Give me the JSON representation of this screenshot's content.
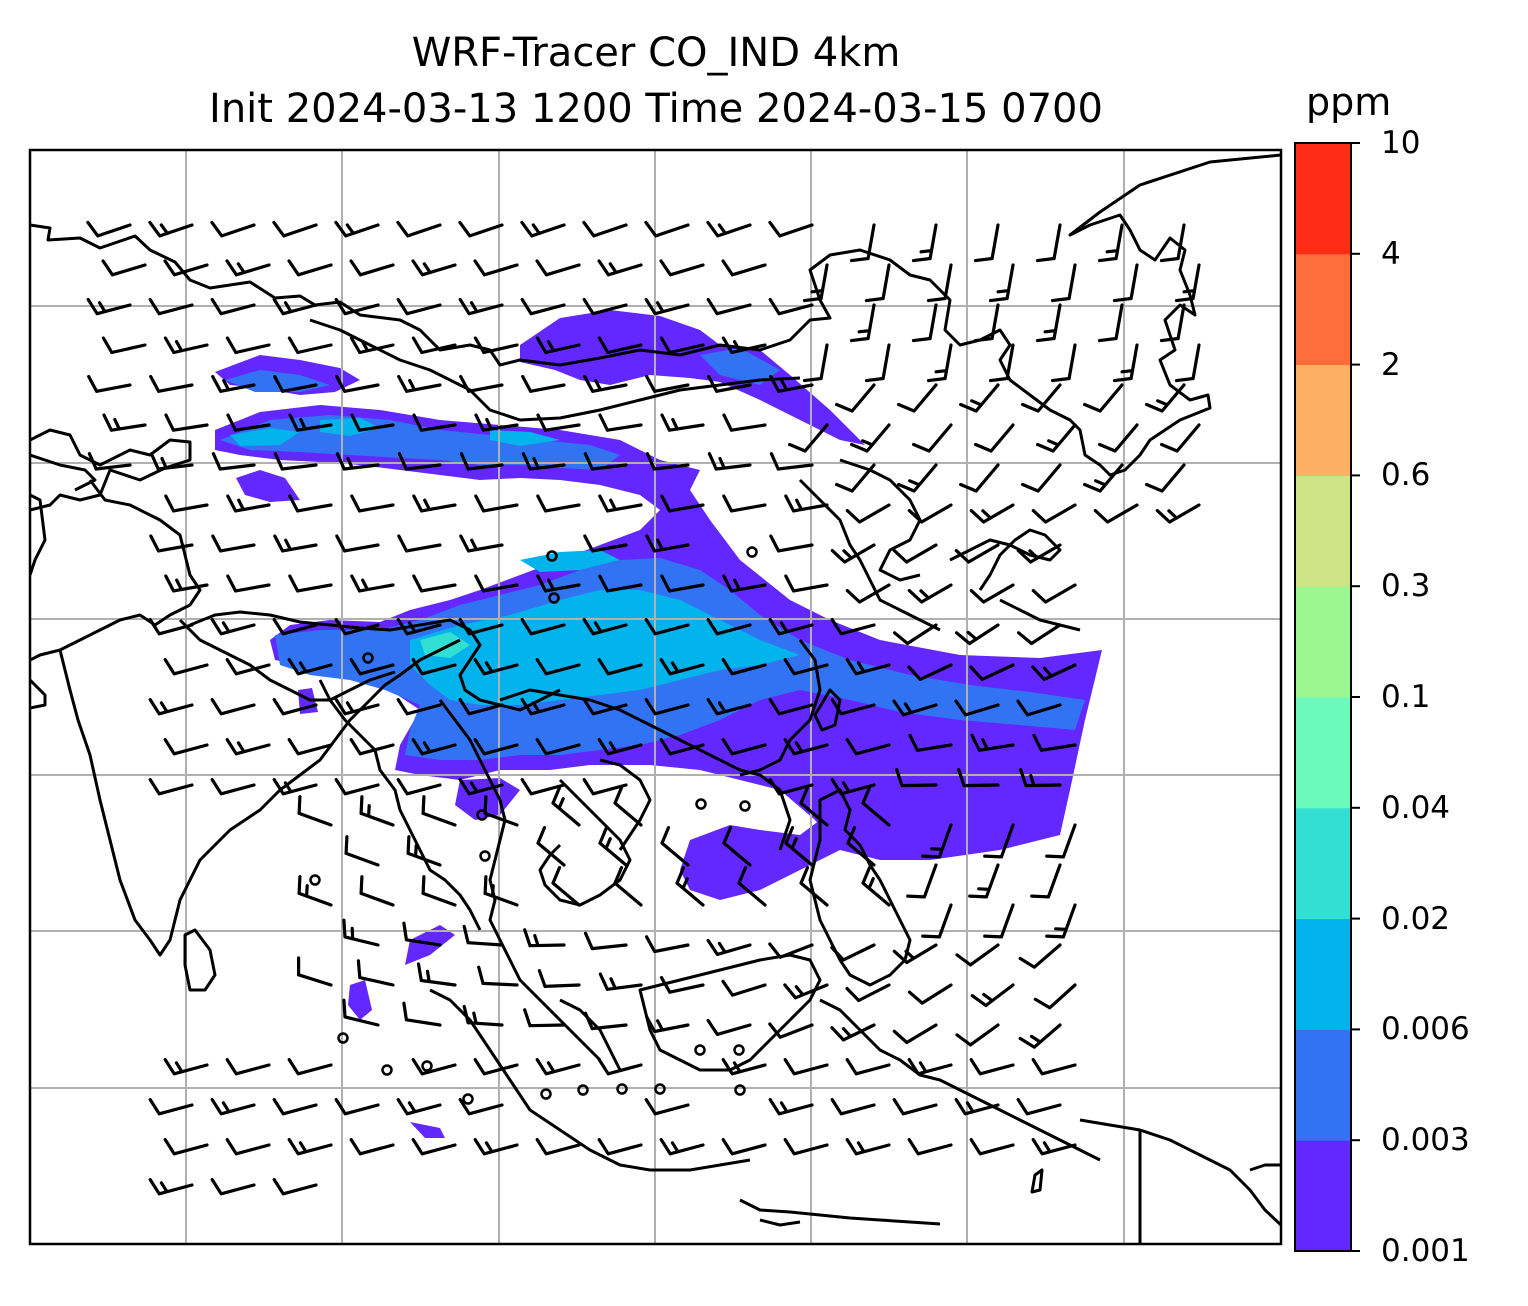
{
  "title": {
    "line1": "WRF-Tracer CO_IND 4km",
    "line2": "Init 2024-03-13 1200 Time 2024-03-15 0700"
  },
  "colorbar": {
    "unit": "ppm",
    "ticks": [
      "0.001",
      "0.003",
      "0.006",
      "0.02",
      "0.04",
      "0.1",
      "0.3",
      "0.6",
      "2",
      "4",
      "10"
    ],
    "colors": [
      "#6228ff",
      "#3273f4",
      "#03b3ec",
      "#31dfd3",
      "#6cfabc",
      "#9af78f",
      "#cde386",
      "#fdb063",
      "#ff6e3a",
      "#ff2d15"
    ]
  },
  "map": {
    "gridlines": "on",
    "overlay": "wind barbs",
    "land_outlines": "black coastlines and borders",
    "plume_color_low": "#6228ff"
  }
}
